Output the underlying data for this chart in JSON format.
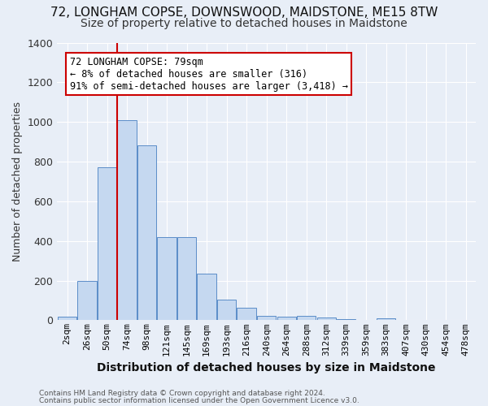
{
  "title": "72, LONGHAM COPSE, DOWNSWOOD, MAIDSTONE, ME15 8TW",
  "subtitle": "Size of property relative to detached houses in Maidstone",
  "xlabel": "Distribution of detached houses by size in Maidstone",
  "ylabel": "Number of detached properties",
  "footer1": "Contains HM Land Registry data © Crown copyright and database right 2024.",
  "footer2": "Contains public sector information licensed under the Open Government Licence v3.0.",
  "bar_labels": [
    "2sqm",
    "26sqm",
    "50sqm",
    "74sqm",
    "98sqm",
    "121sqm",
    "145sqm",
    "169sqm",
    "193sqm",
    "216sqm",
    "240sqm",
    "264sqm",
    "288sqm",
    "312sqm",
    "339sqm",
    "359sqm",
    "383sqm",
    "407sqm",
    "430sqm",
    "454sqm",
    "478sqm"
  ],
  "bar_values": [
    20,
    200,
    770,
    1010,
    880,
    420,
    420,
    235,
    105,
    65,
    22,
    18,
    22,
    15,
    5,
    0,
    10,
    0,
    0,
    0,
    0
  ],
  "bar_color": "#c5d8f0",
  "bar_edge_color": "#5b8dc8",
  "vline_color": "#cc0000",
  "vline_bin_index": 3,
  "annotation_line1": "72 LONGHAM COPSE: 79sqm",
  "annotation_line2": "← 8% of detached houses are smaller (316)",
  "annotation_line3": "91% of semi-detached houses are larger (3,418) →",
  "annotation_box_facecolor": "#ffffff",
  "annotation_box_edgecolor": "#cc0000",
  "ylim": [
    0,
    1400
  ],
  "yticks": [
    0,
    200,
    400,
    600,
    800,
    1000,
    1200,
    1400
  ],
  "background_color": "#e8eef7",
  "grid_color": "#ffffff",
  "title_fontsize": 11,
  "subtitle_fontsize": 10,
  "ylabel_fontsize": 9,
  "xlabel_fontsize": 10,
  "tick_fontsize": 8,
  "annotation_fontsize": 8.5,
  "footer_fontsize": 6.5
}
